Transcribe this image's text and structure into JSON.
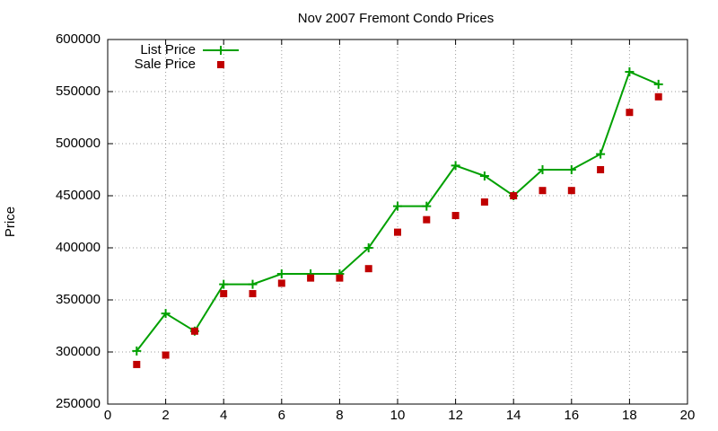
{
  "chart_data": {
    "type": "line",
    "title": "Nov 2007 Fremont Condo Prices",
    "y_label": "Price",
    "x": [
      1,
      2,
      3,
      4,
      5,
      6,
      7,
      8,
      9,
      10,
      11,
      12,
      13,
      14,
      15,
      16,
      17,
      18,
      19
    ],
    "series": [
      {
        "name": "List Price",
        "color": "#00a000",
        "style": "linespoints",
        "values": [
          301000,
          337000,
          320000,
          365000,
          365000,
          375000,
          375000,
          375000,
          400000,
          440000,
          440000,
          479000,
          469000,
          450000,
          475000,
          475000,
          490000,
          569000,
          557000
        ]
      },
      {
        "name": "Sale Price",
        "color": "#c00000",
        "style": "points",
        "values": [
          288000,
          297000,
          320000,
          356000,
          356000,
          366000,
          371000,
          371000,
          380000,
          415000,
          427000,
          431000,
          444000,
          450000,
          455000,
          455000,
          475000,
          530000,
          545000
        ]
      }
    ],
    "xlim": [
      0,
      20
    ],
    "xticks": [
      0,
      2,
      4,
      6,
      8,
      10,
      12,
      14,
      16,
      18,
      20
    ],
    "ylim": [
      250000,
      600000
    ],
    "yticks": [
      250000,
      300000,
      350000,
      400000,
      450000,
      500000,
      550000,
      600000
    ],
    "grid": true,
    "legend": "top-left"
  }
}
